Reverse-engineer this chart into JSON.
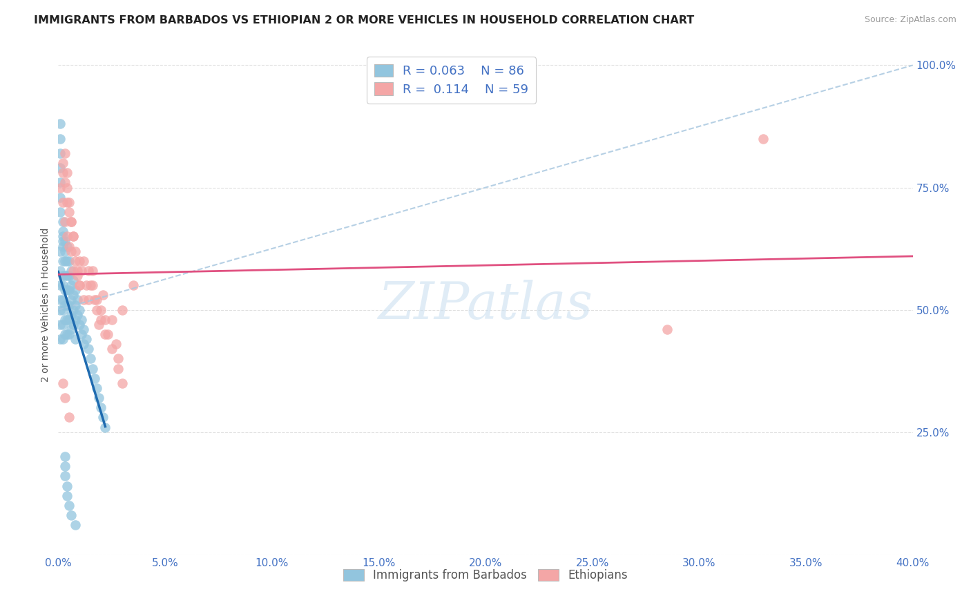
{
  "title": "IMMIGRANTS FROM BARBADOS VS ETHIOPIAN 2 OR MORE VEHICLES IN HOUSEHOLD CORRELATION CHART",
  "source": "Source: ZipAtlas.com",
  "ylabel": "2 or more Vehicles in Household",
  "legend_label_blue": "Immigrants from Barbados",
  "legend_label_pink": "Ethiopians",
  "blue_color": "#92c5de",
  "pink_color": "#f4a6a6",
  "trend_blue": "#1f6bb0",
  "trend_pink": "#e05080",
  "trend_dash_color": "#aac8e0",
  "watermark_color": "#cce0f0",
  "background_color": "#ffffff",
  "grid_color": "#dddddd",
  "tick_color": "#4472c4",
  "title_color": "#222222",
  "source_color": "#999999",
  "ylabel_color": "#555555",
  "blue_x": [
    0.001,
    0.001,
    0.001,
    0.001,
    0.001,
    0.001,
    0.001,
    0.002,
    0.002,
    0.002,
    0.002,
    0.002,
    0.002,
    0.002,
    0.002,
    0.002,
    0.003,
    0.003,
    0.003,
    0.003,
    0.003,
    0.003,
    0.003,
    0.003,
    0.004,
    0.004,
    0.004,
    0.004,
    0.004,
    0.004,
    0.004,
    0.005,
    0.005,
    0.005,
    0.005,
    0.005,
    0.005,
    0.006,
    0.006,
    0.006,
    0.006,
    0.006,
    0.007,
    0.007,
    0.007,
    0.007,
    0.008,
    0.008,
    0.008,
    0.008,
    0.009,
    0.009,
    0.01,
    0.01,
    0.011,
    0.011,
    0.012,
    0.012,
    0.013,
    0.014,
    0.015,
    0.016,
    0.017,
    0.018,
    0.019,
    0.02,
    0.021,
    0.022,
    0.001,
    0.001,
    0.001,
    0.001,
    0.001,
    0.001,
    0.001,
    0.002,
    0.002,
    0.002,
    0.003,
    0.003,
    0.003,
    0.004,
    0.004,
    0.005,
    0.006,
    0.008
  ],
  "blue_y": [
    0.62,
    0.58,
    0.55,
    0.52,
    0.5,
    0.47,
    0.44,
    0.65,
    0.63,
    0.6,
    0.57,
    0.55,
    0.52,
    0.5,
    0.47,
    0.44,
    0.64,
    0.62,
    0.6,
    0.57,
    0.54,
    0.51,
    0.48,
    0.45,
    0.63,
    0.6,
    0.57,
    0.54,
    0.51,
    0.48,
    0.45,
    0.6,
    0.57,
    0.54,
    0.51,
    0.48,
    0.45,
    0.58,
    0.55,
    0.52,
    0.49,
    0.46,
    0.56,
    0.53,
    0.5,
    0.47,
    0.54,
    0.51,
    0.48,
    0.44,
    0.52,
    0.49,
    0.5,
    0.47,
    0.48,
    0.45,
    0.46,
    0.43,
    0.44,
    0.42,
    0.4,
    0.38,
    0.36,
    0.34,
    0.32,
    0.3,
    0.28,
    0.26,
    0.88,
    0.85,
    0.82,
    0.79,
    0.76,
    0.73,
    0.7,
    0.68,
    0.66,
    0.64,
    0.2,
    0.18,
    0.16,
    0.14,
    0.12,
    0.1,
    0.08,
    0.06
  ],
  "pink_x": [
    0.001,
    0.002,
    0.002,
    0.003,
    0.003,
    0.004,
    0.004,
    0.005,
    0.005,
    0.006,
    0.006,
    0.007,
    0.007,
    0.008,
    0.009,
    0.01,
    0.01,
    0.011,
    0.012,
    0.013,
    0.014,
    0.015,
    0.016,
    0.017,
    0.018,
    0.019,
    0.02,
    0.021,
    0.022,
    0.023,
    0.025,
    0.027,
    0.028,
    0.03,
    0.035,
    0.002,
    0.003,
    0.004,
    0.004,
    0.005,
    0.006,
    0.007,
    0.008,
    0.009,
    0.01,
    0.012,
    0.014,
    0.016,
    0.018,
    0.02,
    0.022,
    0.025,
    0.028,
    0.03,
    0.002,
    0.003,
    0.005,
    0.33,
    0.285
  ],
  "pink_y": [
    0.75,
    0.78,
    0.72,
    0.76,
    0.68,
    0.72,
    0.65,
    0.7,
    0.63,
    0.68,
    0.62,
    0.65,
    0.58,
    0.6,
    0.57,
    0.6,
    0.55,
    0.58,
    0.6,
    0.55,
    0.52,
    0.55,
    0.58,
    0.52,
    0.5,
    0.47,
    0.5,
    0.53,
    0.48,
    0.45,
    0.48,
    0.43,
    0.4,
    0.5,
    0.55,
    0.8,
    0.82,
    0.78,
    0.75,
    0.72,
    0.68,
    0.65,
    0.62,
    0.58,
    0.55,
    0.52,
    0.58,
    0.55,
    0.52,
    0.48,
    0.45,
    0.42,
    0.38,
    0.35,
    0.35,
    0.32,
    0.28,
    0.85,
    0.46
  ],
  "xlim": [
    0.0,
    0.4
  ],
  "ylim": [
    0.0,
    1.02
  ],
  "ytick_vals": [
    0.0,
    0.25,
    0.5,
    0.75,
    1.0
  ],
  "ytick_labels": [
    "",
    "25.0%",
    "50.0%",
    "75.0%",
    "100.0%"
  ],
  "xtick_count": 9,
  "title_fontsize": 11.5,
  "legend_fontsize": 13,
  "axis_label_fontsize": 10,
  "tick_fontsize": 11
}
